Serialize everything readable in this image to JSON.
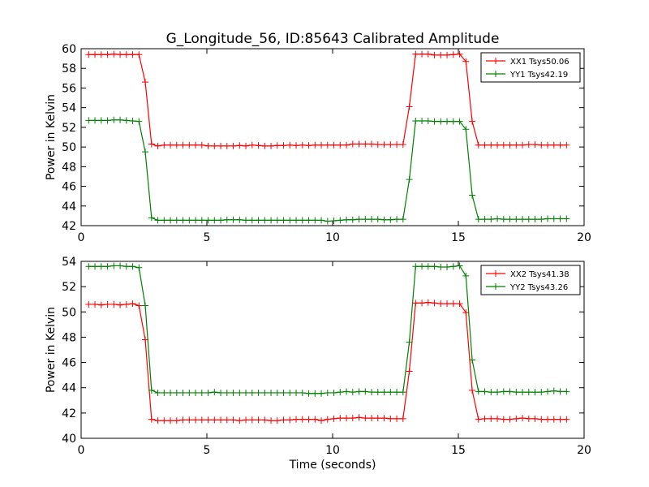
{
  "chart_data": [
    {
      "type": "line",
      "title": "G_Longitude_56, ID:85643 Calibrated Amplitude",
      "xlabel": "",
      "ylabel": "Power in Kelvin",
      "xlim": [
        0,
        20
      ],
      "ylim": [
        42,
        60
      ],
      "xticks": [
        "0",
        "5",
        "10",
        "15",
        "20"
      ],
      "yticks": [
        "42",
        "44",
        "46",
        "48",
        "50",
        "52",
        "54",
        "56",
        "58",
        "60"
      ],
      "grid": false,
      "legend_position": "top-right",
      "x": [
        0.3,
        0.55,
        0.8,
        1.05,
        1.3,
        1.55,
        1.8,
        2.05,
        2.3,
        2.55,
        2.8,
        3.05,
        3.3,
        3.55,
        3.8,
        4.05,
        4.3,
        4.55,
        4.8,
        5.05,
        5.3,
        5.55,
        5.8,
        6.05,
        6.3,
        6.55,
        6.8,
        7.05,
        7.3,
        7.55,
        7.8,
        8.05,
        8.3,
        8.55,
        8.8,
        9.05,
        9.3,
        9.55,
        9.8,
        10.05,
        10.3,
        10.55,
        10.8,
        11.05,
        11.3,
        11.55,
        11.8,
        12.05,
        12.3,
        12.55,
        12.8,
        13.05,
        13.3,
        13.55,
        13.8,
        14.05,
        14.3,
        14.55,
        14.8,
        15.05,
        15.3,
        15.55,
        15.8,
        16.05,
        16.3,
        16.55,
        16.8,
        17.05,
        17.3,
        17.55,
        17.8,
        18.05,
        18.3,
        18.55,
        18.8,
        19.05,
        19.3
      ],
      "series": [
        {
          "name": "XX1 Tsys50.06",
          "color": "#ff0000",
          "values": [
            59.4,
            59.4,
            59.4,
            59.4,
            59.45,
            59.4,
            59.4,
            59.4,
            59.4,
            56.6,
            50.3,
            50.1,
            50.2,
            50.2,
            50.2,
            50.2,
            50.2,
            50.2,
            50.2,
            50.1,
            50.1,
            50.1,
            50.1,
            50.1,
            50.15,
            50.1,
            50.2,
            50.15,
            50.1,
            50.1,
            50.15,
            50.15,
            50.2,
            50.15,
            50.2,
            50.15,
            50.2,
            50.2,
            50.2,
            50.2,
            50.2,
            50.2,
            50.3,
            50.3,
            50.3,
            50.3,
            50.25,
            50.25,
            50.25,
            50.25,
            50.25,
            54.1,
            59.45,
            59.45,
            59.45,
            59.35,
            59.35,
            59.35,
            59.4,
            59.45,
            58.7,
            52.6,
            50.2,
            50.2,
            50.2,
            50.2,
            50.2,
            50.2,
            50.2,
            50.2,
            50.25,
            50.25,
            50.2,
            50.2,
            50.2,
            50.2,
            50.2
          ]
        },
        {
          "name": "YY1 Tsys42.19",
          "color": "#008000",
          "values": [
            52.7,
            52.7,
            52.7,
            52.7,
            52.75,
            52.75,
            52.7,
            52.65,
            52.6,
            49.5,
            42.8,
            42.55,
            42.55,
            42.55,
            42.55,
            42.55,
            42.55,
            42.55,
            42.55,
            42.55,
            42.55,
            42.55,
            42.6,
            42.6,
            42.6,
            42.55,
            42.55,
            42.55,
            42.55,
            42.55,
            42.55,
            42.55,
            42.55,
            42.55,
            42.55,
            42.55,
            42.55,
            42.55,
            42.45,
            42.5,
            42.55,
            42.6,
            42.6,
            42.65,
            42.65,
            42.65,
            42.65,
            42.6,
            42.6,
            42.65,
            42.65,
            46.7,
            52.65,
            52.65,
            52.65,
            52.6,
            52.6,
            52.6,
            52.6,
            52.6,
            51.8,
            45.1,
            42.65,
            42.65,
            42.65,
            42.7,
            42.65,
            42.65,
            42.65,
            42.65,
            42.65,
            42.65,
            42.65,
            42.7,
            42.7,
            42.7,
            42.7
          ]
        }
      ]
    },
    {
      "type": "line",
      "title": "",
      "xlabel": "Time (seconds)",
      "ylabel": "Power in Kelvin",
      "xlim": [
        0,
        20
      ],
      "ylim": [
        40,
        54
      ],
      "xticks": [
        "0",
        "5",
        "10",
        "15",
        "20"
      ],
      "yticks": [
        "40",
        "42",
        "44",
        "46",
        "48",
        "50",
        "52",
        "54"
      ],
      "grid": false,
      "legend_position": "top-right",
      "x": [
        0.3,
        0.55,
        0.8,
        1.05,
        1.3,
        1.55,
        1.8,
        2.05,
        2.3,
        2.55,
        2.8,
        3.05,
        3.3,
        3.55,
        3.8,
        4.05,
        4.3,
        4.55,
        4.8,
        5.05,
        5.3,
        5.55,
        5.8,
        6.05,
        6.3,
        6.55,
        6.8,
        7.05,
        7.3,
        7.55,
        7.8,
        8.05,
        8.3,
        8.55,
        8.8,
        9.05,
        9.3,
        9.55,
        9.8,
        10.05,
        10.3,
        10.55,
        10.8,
        11.05,
        11.3,
        11.55,
        11.8,
        12.05,
        12.3,
        12.55,
        12.8,
        13.05,
        13.3,
        13.55,
        13.8,
        14.05,
        14.3,
        14.55,
        14.8,
        15.05,
        15.3,
        15.55,
        15.8,
        16.05,
        16.3,
        16.55,
        16.8,
        17.05,
        17.3,
        17.55,
        17.8,
        18.05,
        18.3,
        18.55,
        18.8,
        19.05,
        19.3
      ],
      "series": [
        {
          "name": "XX2 Tsys41.38",
          "color": "#ff0000",
          "values": [
            50.6,
            50.6,
            50.55,
            50.6,
            50.6,
            50.55,
            50.6,
            50.65,
            50.5,
            47.8,
            41.5,
            41.4,
            41.4,
            41.4,
            41.4,
            41.45,
            41.45,
            41.45,
            41.45,
            41.45,
            41.45,
            41.45,
            41.45,
            41.45,
            41.4,
            41.45,
            41.45,
            41.45,
            41.45,
            41.4,
            41.4,
            41.45,
            41.45,
            41.5,
            41.5,
            41.5,
            41.5,
            41.4,
            41.5,
            41.55,
            41.6,
            41.6,
            41.6,
            41.65,
            41.6,
            41.6,
            41.6,
            41.6,
            41.55,
            41.55,
            41.55,
            45.3,
            50.7,
            50.7,
            50.75,
            50.7,
            50.65,
            50.65,
            50.65,
            50.65,
            49.95,
            43.8,
            41.5,
            41.55,
            41.55,
            41.55,
            41.5,
            41.5,
            41.55,
            41.6,
            41.55,
            41.55,
            41.5,
            41.5,
            41.5,
            41.5,
            41.5
          ]
        },
        {
          "name": "YY2 Tsys43.26",
          "color": "#008000",
          "values": [
            53.6,
            53.6,
            53.6,
            53.6,
            53.65,
            53.65,
            53.6,
            53.6,
            53.5,
            50.5,
            43.8,
            43.6,
            43.6,
            43.6,
            43.6,
            43.6,
            43.6,
            43.6,
            43.6,
            43.6,
            43.65,
            43.6,
            43.6,
            43.6,
            43.6,
            43.6,
            43.6,
            43.6,
            43.6,
            43.6,
            43.6,
            43.6,
            43.6,
            43.6,
            43.6,
            43.55,
            43.55,
            43.55,
            43.6,
            43.6,
            43.65,
            43.7,
            43.65,
            43.7,
            43.7,
            43.65,
            43.65,
            43.65,
            43.65,
            43.65,
            43.65,
            47.6,
            53.6,
            53.6,
            53.6,
            53.6,
            53.55,
            53.55,
            53.6,
            53.65,
            52.85,
            46.2,
            43.7,
            43.7,
            43.65,
            43.65,
            43.7,
            43.7,
            43.65,
            43.65,
            43.65,
            43.65,
            43.65,
            43.7,
            43.75,
            43.7,
            43.7
          ]
        }
      ]
    }
  ]
}
